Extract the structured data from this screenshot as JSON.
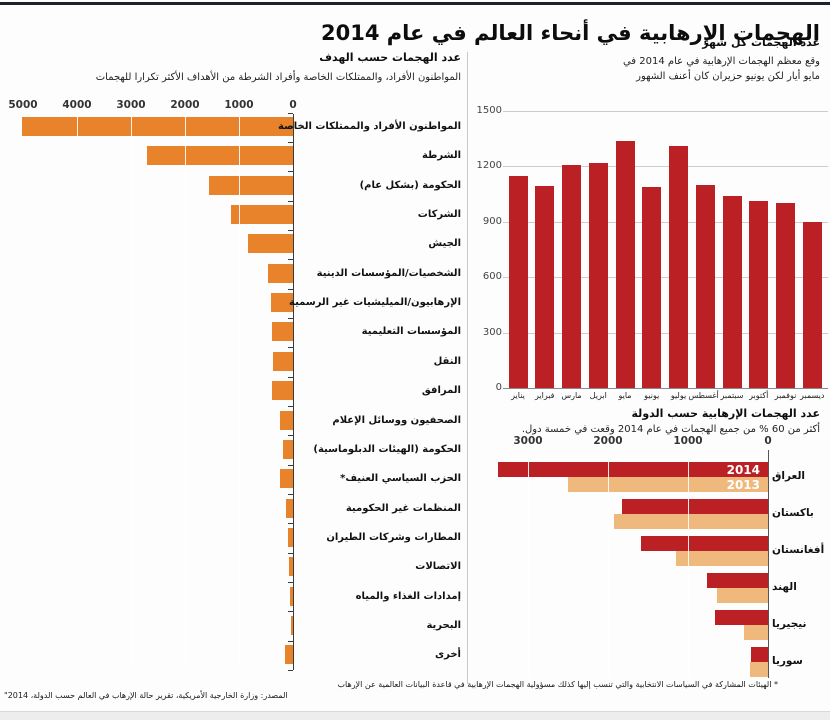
{
  "page_title": "الهجمات الإرهابية في أنحاء العالم في عام 2014",
  "colors": {
    "orange": "#E8832C",
    "red": "#BB2025",
    "tan": "#EFB97D"
  },
  "chart_data": [
    {
      "type": "bar",
      "orientation": "horizontal",
      "direction": "rtl",
      "title": "عدد الهجمات حسب الهدف",
      "subtitle": "المواطنون الأفراد، والممتلكات الخاصة وأفراد الشرطة من الأهداف الأكثر تكرارا للهجمات",
      "x_ticks": [
        5000,
        4000,
        3000,
        2000,
        1000,
        0
      ],
      "xlim": [
        0,
        5000
      ],
      "bar_color": "#E8832C",
      "categories": [
        "المواطنون الأفراد والممتلكات الخاصة",
        "الشرطة",
        "الحكومة (بشكل عام)",
        "الشركات",
        "الجيش",
        "الشخصيات/المؤسسات الدينية",
        "الإرهابيون/الميليشيات غير الرسمية",
        "المؤسسات التعليمية",
        "النقل",
        "المرافق",
        "الصحفيون ووسائل الإعلام",
        "الحكومة (الهيئات الدبلوماسية)",
        "الحزب السياسي العنيف*",
        "المنظمات غير الحكومية",
        "المطارات وشركات الطيران",
        "الاتصالات",
        "إمدادات الغذاء والمياه",
        "البحرية",
        "أخرى"
      ],
      "values": [
        5020,
        2700,
        1550,
        1140,
        830,
        460,
        410,
        390,
        375,
        380,
        245,
        185,
        235,
        135,
        95,
        75,
        50,
        35,
        150
      ]
    },
    {
      "type": "bar",
      "orientation": "vertical",
      "title": "عدد الهجمات كل شهر",
      "subtitle": "وقع معظم الهجمات الإرهابية في عام 2014 في\nمايو أيار لكن يونيو حزيران كان أعنف الشهور",
      "y_ticks": [
        1500,
        1200,
        900,
        600,
        300,
        0
      ],
      "ylim": [
        0,
        1500
      ],
      "grid": true,
      "bar_color": "#BB2025",
      "categories": [
        "يناير",
        "فبراير",
        "مارس",
        "ابريل",
        "مايو",
        "يونيو",
        "يوليو",
        "أغسطس",
        "سبتمبر",
        "أكتوبر",
        "نوفمبر",
        "ديسمبر"
      ],
      "values": [
        1150,
        1095,
        1205,
        1220,
        1340,
        1090,
        1310,
        1100,
        1040,
        1010,
        1000,
        900
      ]
    },
    {
      "type": "bar",
      "orientation": "horizontal",
      "direction": "rtl",
      "title": "عدد الهجمات الإرهابية حسب الدولة",
      "subtitle": "أكثر من 60 % من جميع الهجمات في عام 2014 وقعت في خمسة دول.",
      "x_ticks": [
        3000,
        2000,
        1000,
        0
      ],
      "xlim": [
        0,
        3000
      ],
      "legend": {
        "y2014_label": "2014",
        "y2013_label": "2013"
      },
      "categories": [
        "العراق",
        "باكستان",
        "أفغانستان",
        "الهند",
        "نيجيريا",
        "سوريا"
      ],
      "series": [
        {
          "name": "2014",
          "color": "#BB2025",
          "values": [
            3370,
            1825,
            1590,
            765,
            660,
            210
          ]
        },
        {
          "name": "2013",
          "color": "#EFB97D",
          "values": [
            2500,
            1930,
            1150,
            640,
            300,
            220
          ]
        }
      ]
    }
  ],
  "footnotes": {
    "note": "* الهيئات المشاركة في السياسات الانتخابية والتي تنسب إليها كذلك مسؤولية الهجمات الإرهابية في قاعدة البيانات العالمية عن الإرهاب",
    "source": "المصدر: وزارة الخارجية الأمريكية، تقرير حالة الإرهاب في العالم حسب الدولة، 2014\""
  }
}
